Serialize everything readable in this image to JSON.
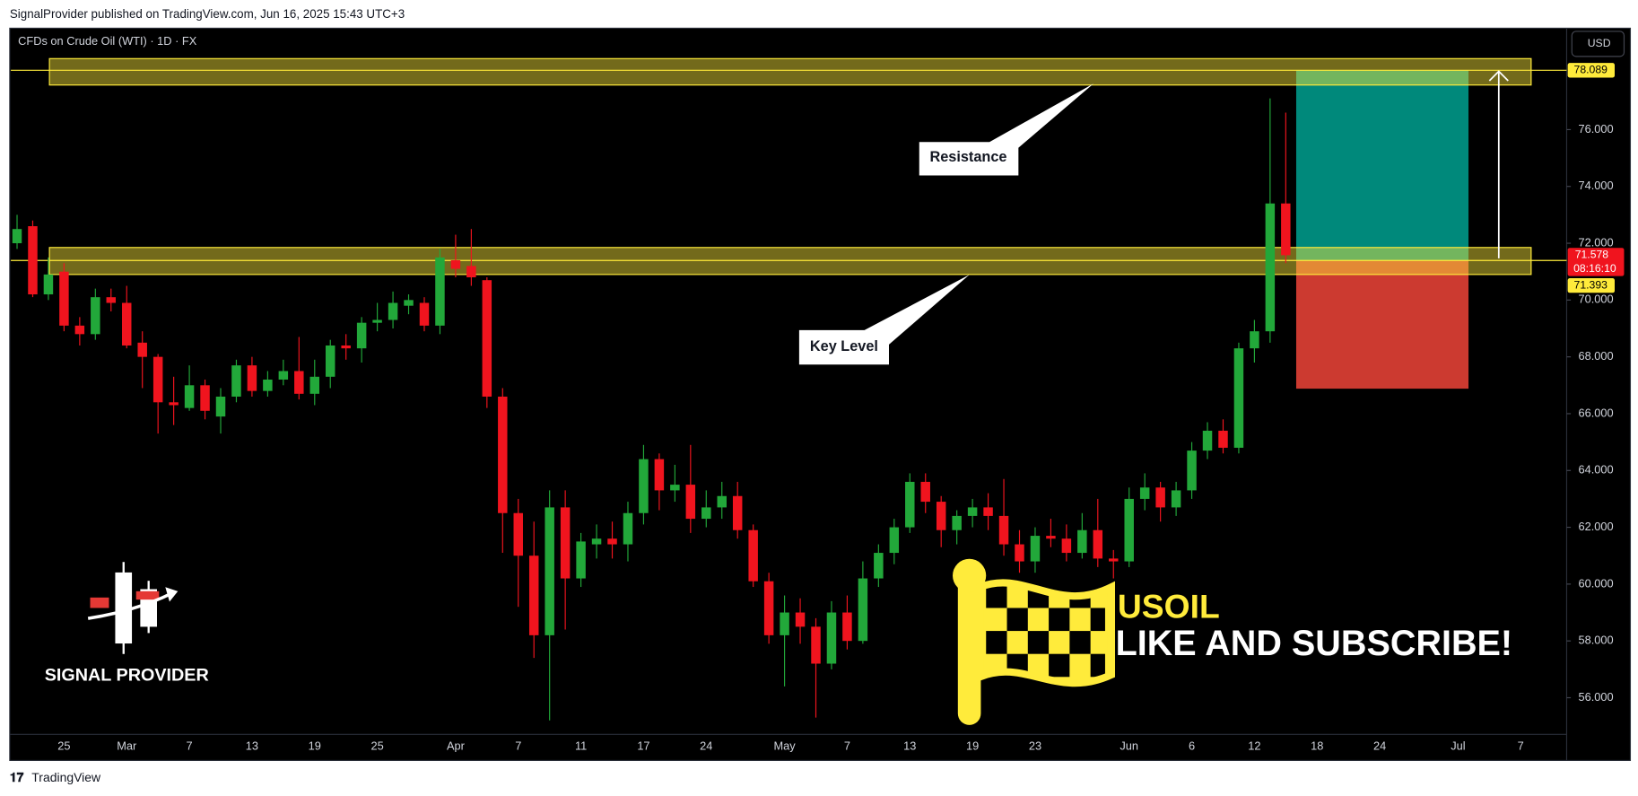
{
  "header": {
    "text": "SignalProvider published on TradingView.com, Jun 16, 2025 15:43 UTC+3"
  },
  "footer": {
    "brand": "TradingView"
  },
  "overlay": {
    "logo": "SIGNAL PROVIDER",
    "symbol": "USOIL",
    "cta": "LIKE AND SUBSCRIBE!"
  },
  "chart_data": {
    "type": "candlestick",
    "title": "CFDs on Crude Oil (WTI) · 1D · FX",
    "currency": "USD",
    "countdown": "08:16:10",
    "up_color": "#22a83a",
    "down_color": "#f0141e",
    "categories": [
      null,
      null,
      null,
      "25",
      null,
      null,
      null,
      "Mar",
      null,
      null,
      null,
      "7",
      null,
      null,
      null,
      "13",
      null,
      null,
      null,
      "19",
      null,
      null,
      null,
      "25",
      null,
      null,
      null,
      null,
      "Apr",
      null,
      null,
      null,
      "7",
      null,
      null,
      null,
      "11",
      null,
      null,
      null,
      "17",
      null,
      null,
      null,
      "24",
      null,
      null,
      null,
      null,
      "May",
      null,
      null,
      null,
      "7",
      null,
      null,
      null,
      "13",
      null,
      null,
      null,
      "19",
      null,
      null,
      null,
      "23",
      null,
      null,
      null,
      null,
      null,
      "Jun",
      null,
      null,
      null,
      "6",
      null,
      null,
      null,
      "12",
      null,
      null,
      null,
      "18",
      null,
      null,
      null,
      "24",
      null,
      null,
      null,
      null,
      "Jul",
      null,
      null,
      null,
      "7"
    ],
    "open": [
      72.0,
      72.6,
      70.2,
      71.0,
      69.1,
      68.8,
      70.1,
      69.9,
      68.5,
      68.0,
      66.4,
      66.2,
      67.0,
      65.9,
      66.6,
      67.7,
      66.8,
      67.2,
      67.5,
      66.7,
      67.3,
      68.4,
      68.3,
      69.2,
      69.3,
      69.8,
      69.9,
      69.1,
      71.4,
      71.2,
      70.7,
      66.6,
      62.5,
      61.0,
      58.2,
      62.7,
      60.2,
      61.4,
      61.6,
      61.4,
      62.5,
      64.4,
      63.3,
      63.5,
      62.3,
      62.7,
      63.1,
      61.9,
      60.1,
      58.2,
      59.0,
      58.5,
      57.2,
      59.0,
      58.0,
      60.2,
      61.1,
      62.0,
      63.6,
      62.9,
      61.9,
      62.4,
      62.7,
      62.4,
      61.4,
      60.8,
      61.7,
      61.6,
      61.1,
      61.9,
      60.9,
      60.8,
      63.0,
      63.4,
      62.7,
      63.3,
      64.7,
      65.4,
      64.8,
      68.3,
      68.9,
      73.4,
      null,
      null,
      null,
      null,
      null,
      null,
      null,
      null,
      null,
      null,
      null,
      null,
      null,
      null,
      null
    ],
    "high": [
      73.0,
      72.8,
      71.5,
      71.3,
      69.4,
      70.4,
      70.4,
      70.5,
      68.9,
      68.1,
      67.3,
      67.7,
      67.2,
      66.9,
      67.9,
      68.0,
      67.5,
      67.9,
      68.7,
      67.9,
      68.6,
      68.8,
      69.4,
      69.9,
      70.3,
      70.2,
      70.1,
      71.8,
      72.3,
      72.5,
      70.8,
      66.9,
      63.0,
      62.2,
      63.3,
      63.3,
      61.8,
      62.1,
      62.2,
      62.9,
      64.9,
      64.6,
      64.2,
      64.9,
      63.3,
      63.6,
      63.6,
      62.1,
      60.4,
      59.6,
      59.5,
      58.8,
      59.4,
      59.6,
      60.8,
      61.4,
      62.3,
      63.9,
      63.9,
      63.1,
      62.6,
      63.0,
      63.2,
      63.7,
      61.9,
      62.0,
      62.3,
      62.1,
      62.5,
      63.0,
      61.2,
      63.4,
      63.9,
      63.6,
      63.6,
      65.0,
      65.7,
      65.8,
      68.5,
      69.3,
      77.1,
      76.6,
      null,
      null,
      null,
      null,
      null,
      null,
      null,
      null,
      null,
      null,
      null,
      null,
      null,
      null,
      null
    ],
    "low": [
      71.8,
      70.1,
      70.0,
      68.9,
      68.4,
      68.6,
      69.6,
      68.3,
      66.9,
      65.3,
      65.6,
      66.1,
      65.8,
      65.3,
      66.4,
      66.6,
      66.6,
      67.0,
      66.5,
      66.3,
      66.9,
      67.9,
      67.8,
      68.9,
      69.0,
      69.5,
      68.9,
      68.8,
      70.8,
      70.5,
      66.2,
      61.1,
      59.2,
      57.4,
      55.2,
      58.4,
      59.9,
      60.9,
      60.9,
      60.8,
      62.1,
      62.6,
      62.9,
      61.8,
      62.0,
      62.3,
      61.6,
      59.9,
      57.9,
      56.4,
      57.9,
      55.3,
      57.0,
      57.7,
      57.9,
      59.9,
      60.7,
      61.8,
      62.5,
      61.3,
      61.4,
      62.0,
      61.9,
      61.0,
      60.4,
      60.4,
      61.3,
      60.8,
      60.9,
      60.6,
      60.2,
      60.6,
      62.6,
      62.2,
      62.4,
      63.0,
      64.4,
      64.6,
      64.6,
      67.8,
      68.5,
      71.3,
      null,
      null,
      null,
      null,
      null,
      null,
      null,
      null,
      null,
      null,
      null,
      null,
      null,
      null,
      null
    ],
    "close": [
      72.5,
      70.2,
      70.9,
      69.1,
      68.8,
      70.1,
      69.9,
      68.4,
      68.0,
      66.4,
      66.3,
      67.0,
      66.1,
      66.6,
      67.7,
      66.8,
      67.2,
      67.5,
      66.7,
      67.3,
      68.4,
      68.3,
      69.2,
      69.3,
      69.9,
      70.0,
      69.1,
      71.5,
      71.1,
      70.8,
      66.6,
      62.5,
      61.0,
      58.2,
      62.7,
      60.2,
      61.5,
      61.6,
      61.4,
      62.5,
      64.4,
      63.3,
      63.5,
      62.3,
      62.7,
      63.1,
      61.9,
      60.1,
      58.2,
      59.0,
      58.5,
      57.2,
      59.0,
      58.0,
      60.2,
      61.1,
      62.0,
      63.6,
      62.9,
      61.9,
      62.4,
      62.7,
      62.4,
      61.4,
      60.8,
      61.7,
      61.6,
      61.1,
      61.9,
      60.9,
      60.8,
      63.0,
      63.4,
      62.7,
      63.3,
      64.7,
      65.4,
      64.8,
      68.3,
      68.9,
      73.4,
      71.578,
      null,
      null,
      null,
      null,
      null,
      null,
      null,
      null,
      null,
      null,
      null,
      null,
      null,
      null,
      null
    ],
    "ylim": [
      54.71,
      79.57
    ],
    "yticks": [
      {
        "value": 56,
        "label": "56.000"
      },
      {
        "value": 58,
        "label": "58.000"
      },
      {
        "value": 60,
        "label": "60.000"
      },
      {
        "value": 62,
        "label": "62.000"
      },
      {
        "value": 64,
        "label": "64.000"
      },
      {
        "value": 66,
        "label": "66.000"
      },
      {
        "value": 68,
        "label": "68.000"
      },
      {
        "value": 70,
        "label": "70.000"
      },
      {
        "value": 72,
        "label": "72.000"
      },
      {
        "value": 74,
        "label": "74.000"
      },
      {
        "value": 76,
        "label": "76.000"
      }
    ],
    "resistance_zone": [
      77.57,
      78.5
    ],
    "key_zone": [
      70.9,
      71.85
    ],
    "zone_color": "#ffeb3b",
    "position": {
      "entry": 71.393,
      "target": 78.089,
      "stop": 66.88,
      "target_color": "#00897b",
      "stop_color": "#cc3a30"
    },
    "annotations": [
      "Resistance",
      "Key Level"
    ]
  }
}
